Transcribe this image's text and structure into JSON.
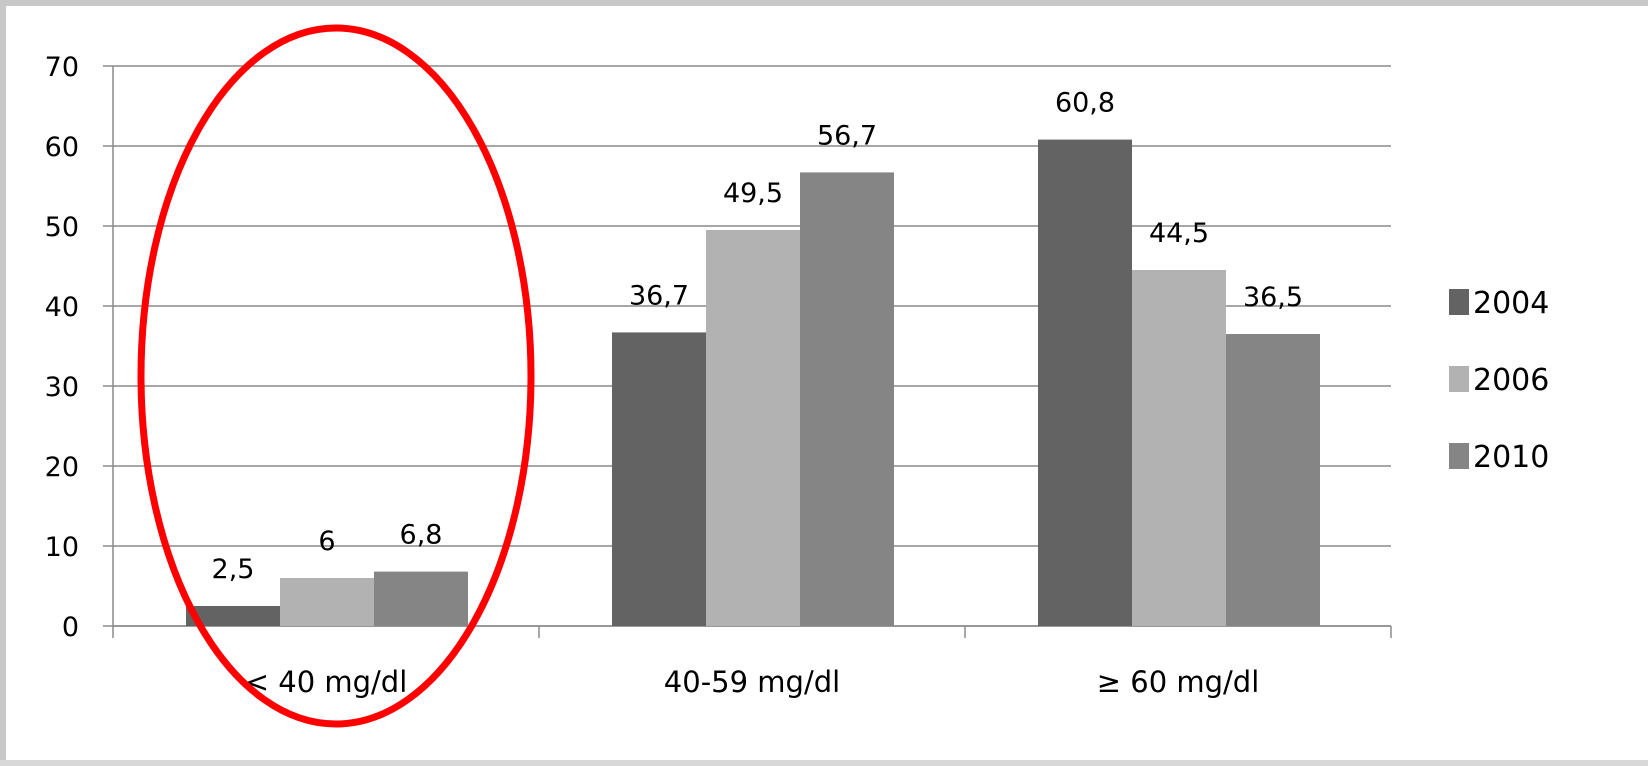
{
  "chart_data": {
    "type": "bar",
    "categories": [
      "< 40 mg/dl",
      "40-59 mg/dl",
      "≥ 60 mg/dl"
    ],
    "series": [
      {
        "name": "2004",
        "values": [
          2.5,
          36.7,
          60.8
        ],
        "labels": [
          "2,5",
          "36,7",
          "60,8"
        ],
        "color": "#636363"
      },
      {
        "name": "2006",
        "values": [
          6,
          49.5,
          44.5
        ],
        "labels": [
          "6",
          "49,5",
          "44,5"
        ],
        "color": "#b2b2b2"
      },
      {
        "name": "2010",
        "values": [
          6.8,
          56.7,
          36.5
        ],
        "labels": [
          "6,8",
          "56,7",
          "36,5"
        ],
        "color": "#858585"
      }
    ],
    "yticks": [
      "0",
      "10",
      "20",
      "30",
      "40",
      "50",
      "60",
      "70"
    ],
    "ylim": [
      0,
      70
    ],
    "grid": true,
    "legend_position": "right",
    "highlight": {
      "category": "< 40 mg/dl",
      "shape": "ellipse",
      "color": "#ff0000"
    }
  }
}
